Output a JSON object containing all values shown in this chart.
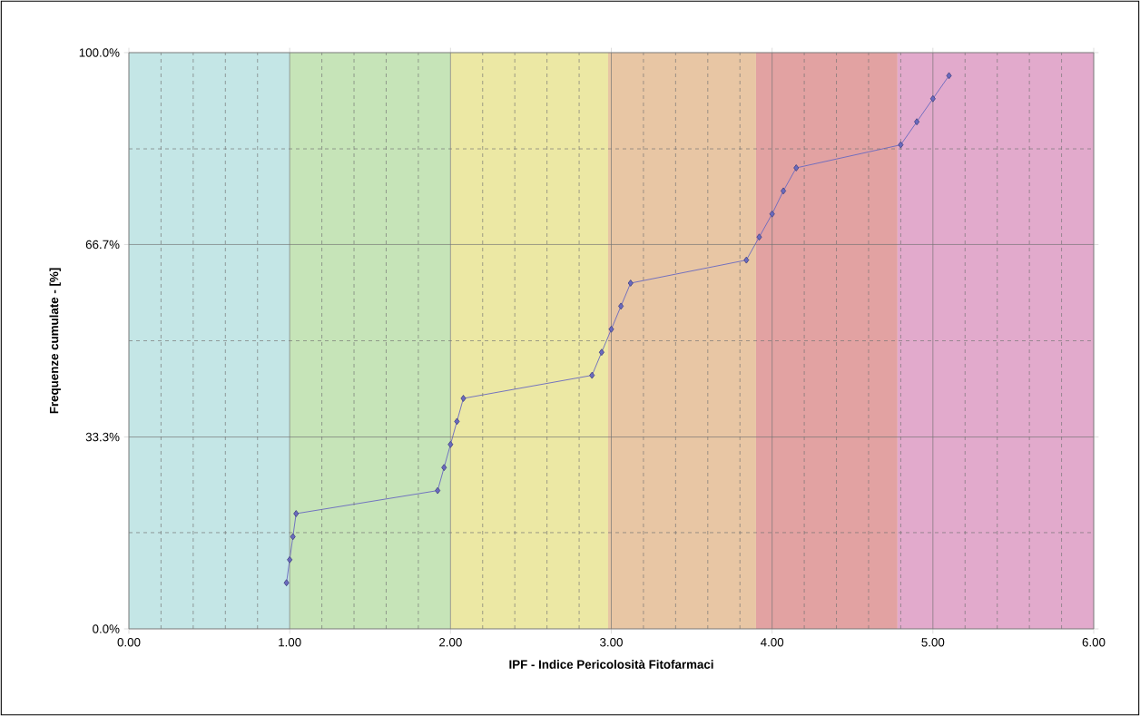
{
  "chart_data": {
    "type": "line",
    "xlabel": "IPF - Indice Pericolosità Fitofarmaci",
    "ylabel": "Frequenze cumulate - [%]",
    "x": [
      0.98,
      1.0,
      1.02,
      1.04,
      1.92,
      1.96,
      2.0,
      2.04,
      2.08,
      2.88,
      2.94,
      3.0,
      3.06,
      3.12,
      3.84,
      3.92,
      4.0,
      4.07,
      4.15,
      4.8,
      4.9,
      5.0,
      5.1
    ],
    "values": [
      8,
      12,
      16,
      20,
      24,
      28,
      32,
      36,
      40,
      44,
      48,
      52,
      56,
      60,
      64,
      68,
      72,
      76,
      80,
      84,
      88,
      92,
      96
    ],
    "color": "#6a6ac0",
    "marker": "diamond",
    "grid": true,
    "xlim": [
      0,
      6
    ],
    "ylim": [
      0,
      100
    ],
    "xticks": [
      {
        "value": 0,
        "label": "0.00"
      },
      {
        "value": 0.2,
        "label": null
      },
      {
        "value": 0.4,
        "label": null
      },
      {
        "value": 0.6,
        "label": null
      },
      {
        "value": 0.8,
        "label": null
      },
      {
        "value": 1,
        "label": "1.00"
      },
      {
        "value": 1.2,
        "label": null
      },
      {
        "value": 1.4,
        "label": null
      },
      {
        "value": 1.6,
        "label": null
      },
      {
        "value": 1.8,
        "label": null
      },
      {
        "value": 2,
        "label": "2.00"
      },
      {
        "value": 2.2,
        "label": null
      },
      {
        "value": 2.4,
        "label": null
      },
      {
        "value": 2.6,
        "label": null
      },
      {
        "value": 2.8,
        "label": null
      },
      {
        "value": 3,
        "label": "3.00"
      },
      {
        "value": 3.2,
        "label": null
      },
      {
        "value": 3.4,
        "label": null
      },
      {
        "value": 3.6,
        "label": null
      },
      {
        "value": 3.8,
        "label": null
      },
      {
        "value": 4,
        "label": "4.00"
      },
      {
        "value": 4.2,
        "label": null
      },
      {
        "value": 4.4,
        "label": null
      },
      {
        "value": 4.6,
        "label": null
      },
      {
        "value": 4.8,
        "label": null
      },
      {
        "value": 5,
        "label": "5.00"
      },
      {
        "value": 5.2,
        "label": null
      },
      {
        "value": 5.4,
        "label": null
      },
      {
        "value": 5.6,
        "label": null
      },
      {
        "value": 5.8,
        "label": null
      },
      {
        "value": 6,
        "label": "6.00"
      }
    ],
    "yticks": [
      {
        "value": 0,
        "label": "0.0%"
      },
      {
        "value": 16.7,
        "label": null
      },
      {
        "value": 33.3,
        "label": "33.3%"
      },
      {
        "value": 50,
        "label": null
      },
      {
        "value": 66.7,
        "label": "66.7%"
      },
      {
        "value": 83.3,
        "label": null
      },
      {
        "value": 100,
        "label": "100.0%"
      }
    ],
    "bands": [
      {
        "axis": "x",
        "from": 0,
        "to": 1,
        "color": "#c4e6e6"
      },
      {
        "axis": "x",
        "from": 1,
        "to": 2,
        "color": "#c6e4b8"
      },
      {
        "axis": "x",
        "from": 2,
        "to": 2.98,
        "color": "#ece8a4"
      },
      {
        "axis": "x",
        "from": 2.98,
        "to": 3.9,
        "color": "#e8c6a4"
      },
      {
        "axis": "x",
        "from": 3.9,
        "to": 4.78,
        "color": "#e2a2a2"
      },
      {
        "axis": "x",
        "from": 4.78,
        "to": 6,
        "color": "#e2aacc"
      }
    ]
  }
}
